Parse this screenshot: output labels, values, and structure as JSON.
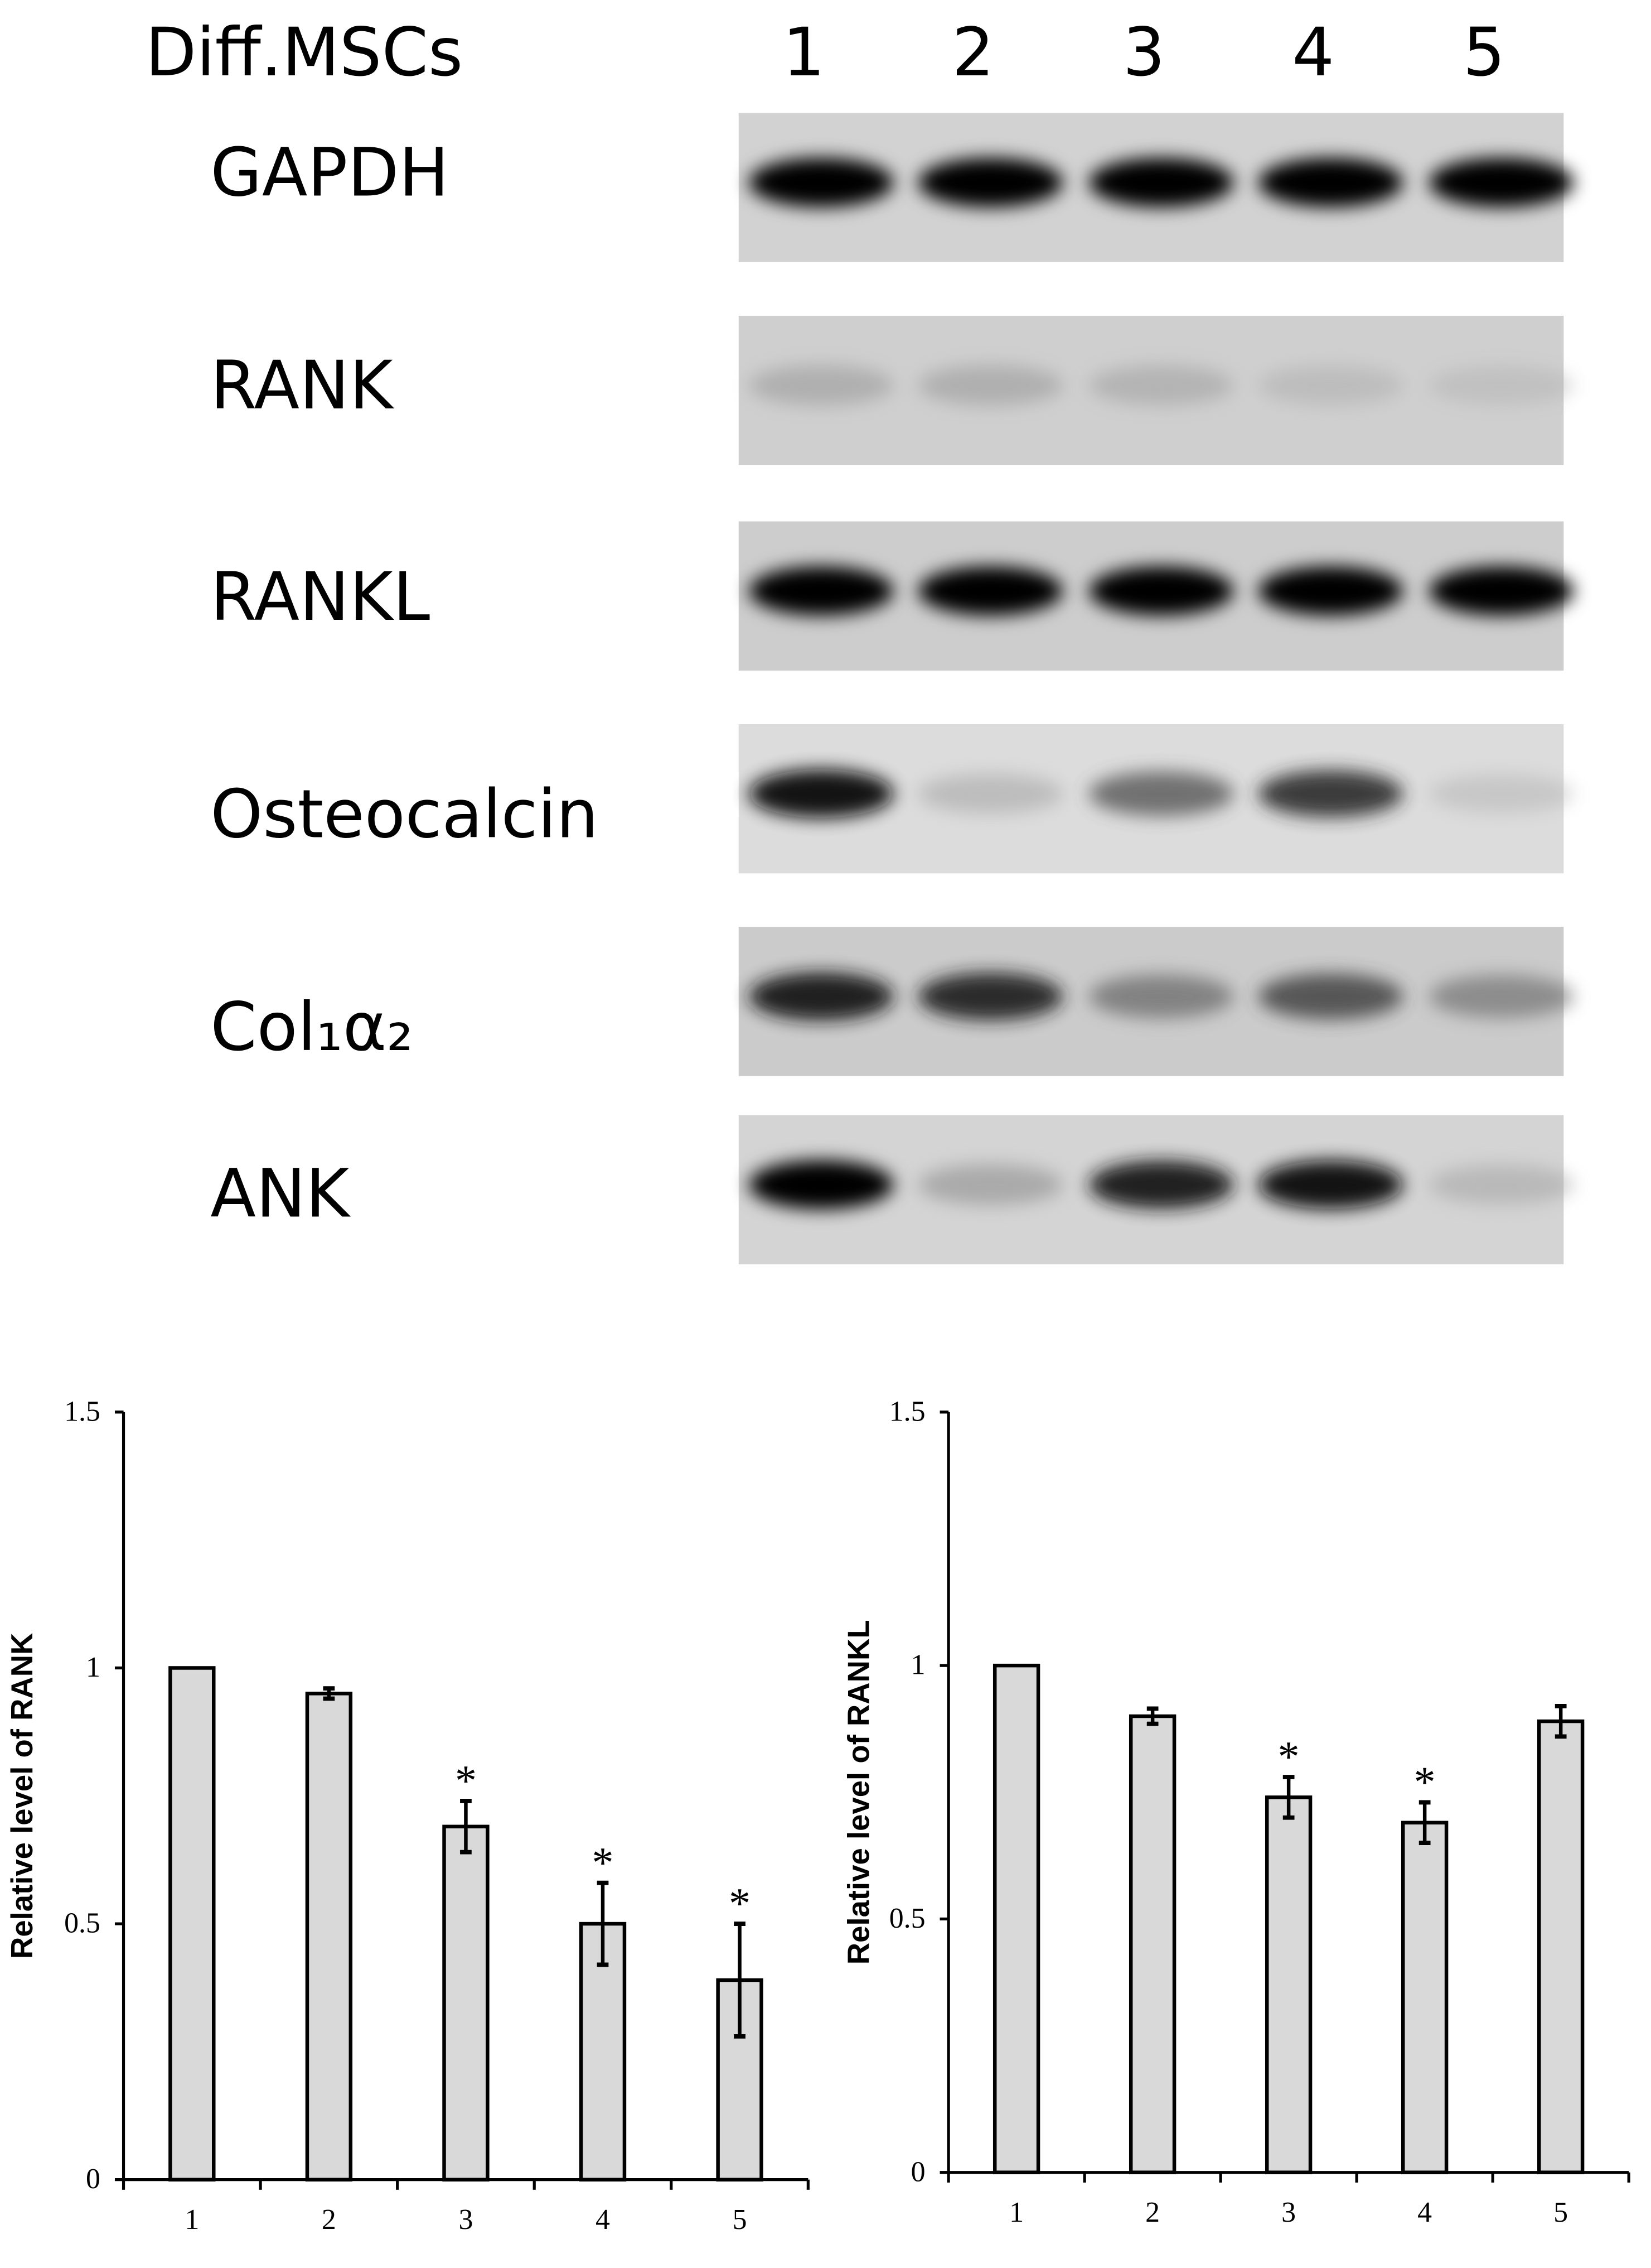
{
  "blot": {
    "header": "Diff.MSCs",
    "lanes": [
      "1",
      "2",
      "3",
      "4",
      "5"
    ],
    "rows": [
      "GAPDH",
      "RANK",
      "RANKL",
      "Osteocalcin",
      "Col₁α₂",
      "ANK"
    ]
  },
  "chart_data": [
    {
      "type": "bar",
      "y_label": "Relative level of RANK",
      "categories": [
        "1",
        "2",
        "3",
        "4",
        "5"
      ],
      "values": [
        1,
        0.95,
        0.69,
        0.5,
        0.39
      ],
      "errors": [
        0,
        0.01,
        0.05,
        0.08,
        0.11
      ],
      "color": "#d9d9d9",
      "annotations": [
        {
          "index": 2,
          "text": "*"
        },
        {
          "index": 3,
          "text": "*"
        },
        {
          "index": 4,
          "text": "*"
        }
      ],
      "ylim": [
        0,
        1.5
      ],
      "yticks": [
        0,
        0.5,
        1,
        1.5
      ]
    },
    {
      "type": "bar",
      "y_label": "Relative level of RANKL",
      "categories": [
        "1",
        "2",
        "3",
        "4",
        "5"
      ],
      "values": [
        1,
        0.9,
        0.74,
        0.69,
        0.89
      ],
      "errors": [
        0,
        0.015,
        0.04,
        0.04,
        0.03
      ],
      "color": "#d9d9d9",
      "annotations": [
        {
          "index": 2,
          "text": "*"
        },
        {
          "index": 3,
          "text": "*"
        }
      ],
      "ylim": [
        0,
        1.5
      ],
      "yticks": [
        0,
        0.5,
        1,
        1.5
      ]
    }
  ]
}
